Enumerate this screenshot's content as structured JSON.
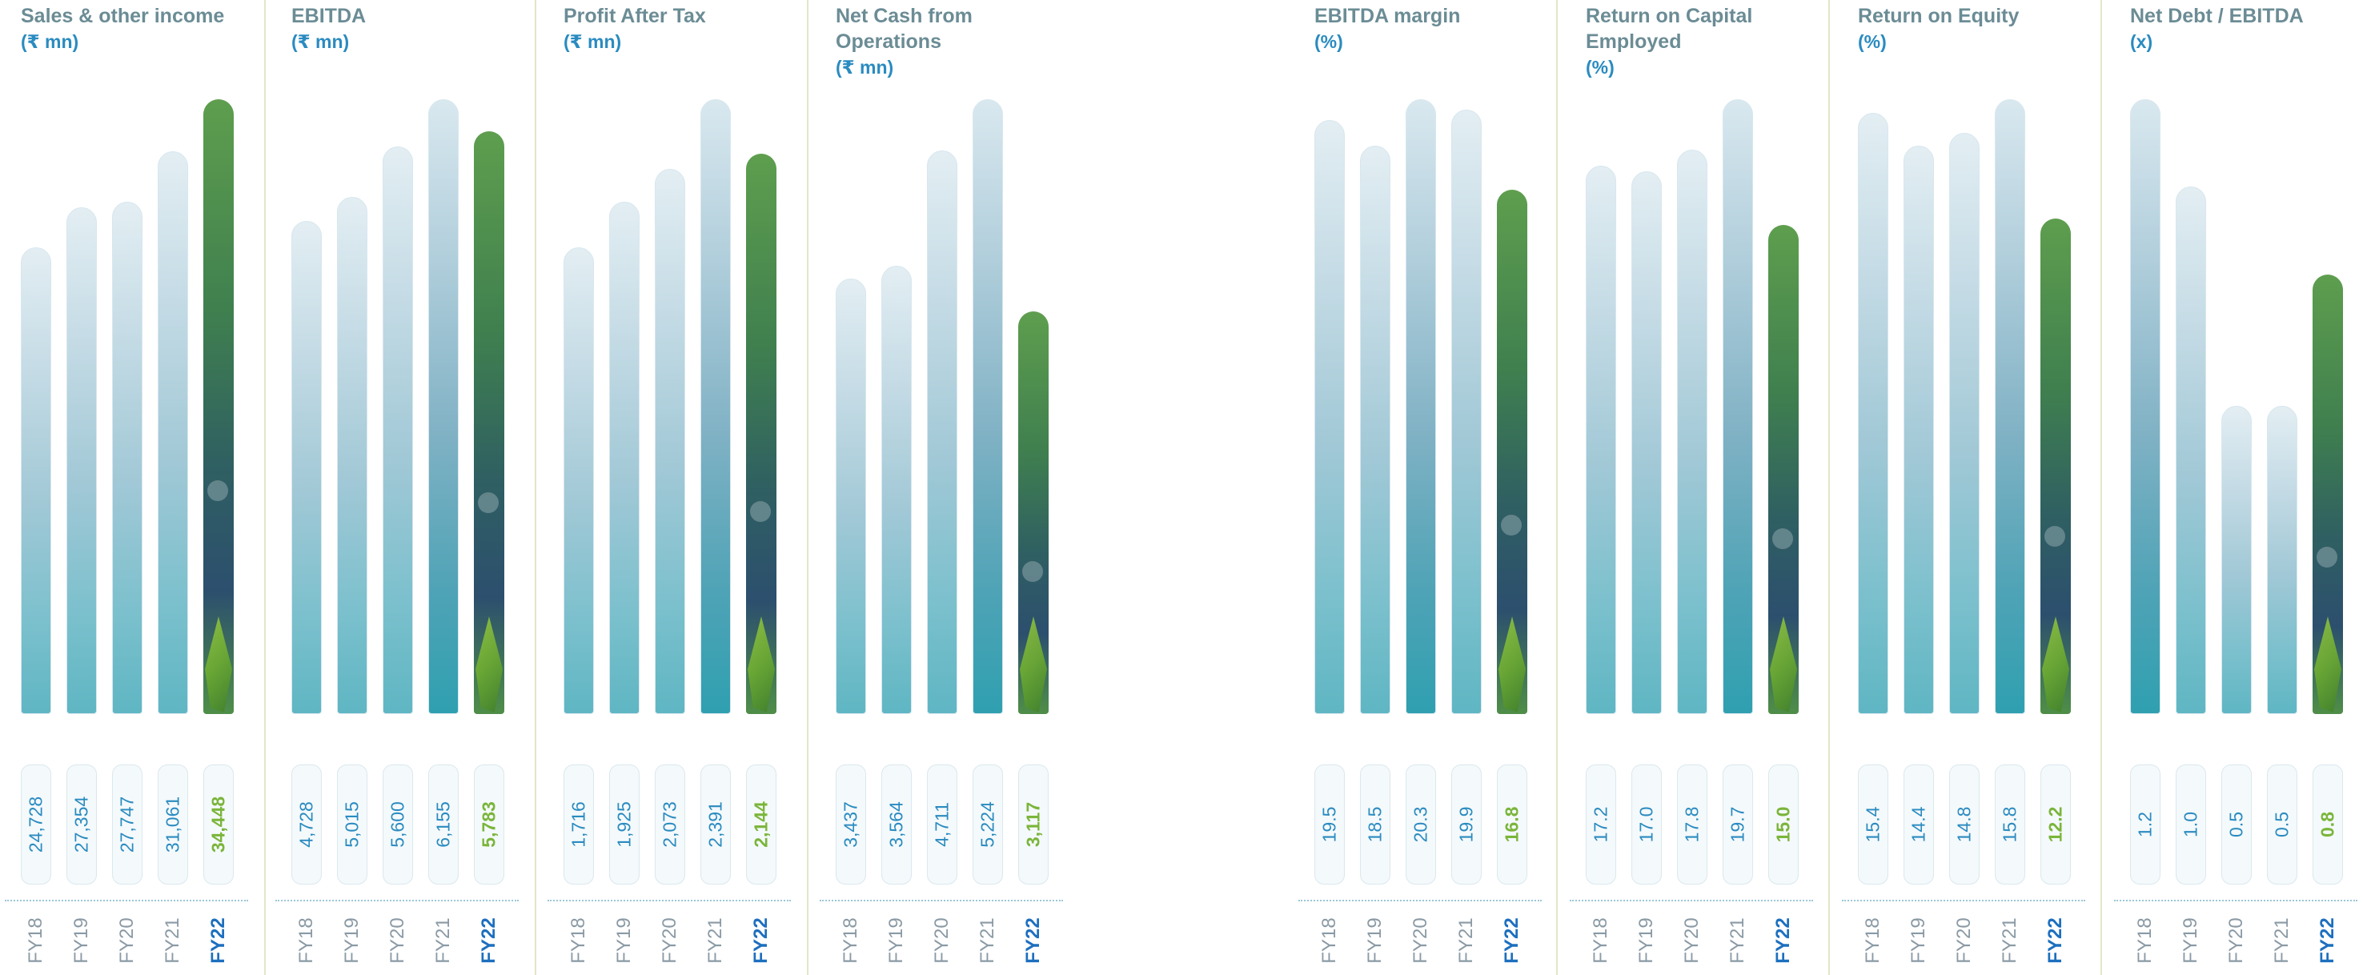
{
  "chart_data": [
    {
      "type": "bar",
      "title": "Sales & other income",
      "unit": "(₹ mn)",
      "categories": [
        "FY18",
        "FY19",
        "FY20",
        "FY21",
        "FY22"
      ],
      "value_labels": [
        "24,728",
        "27,354",
        "27,747",
        "31,061",
        "34,448"
      ],
      "values": [
        24728,
        27354,
        27747,
        31061,
        34448
      ],
      "highlight": "FY22"
    },
    {
      "type": "bar",
      "title": "EBITDA",
      "unit": "(₹ mn)",
      "categories": [
        "FY18",
        "FY19",
        "FY20",
        "FY21",
        "FY22"
      ],
      "value_labels": [
        "4,728",
        "5,015",
        "5,600",
        "6,155",
        "5,783"
      ],
      "values": [
        4728,
        5015,
        5600,
        6155,
        5783
      ],
      "highlight": "FY22"
    },
    {
      "type": "bar",
      "title": "Profit After Tax",
      "unit": "(₹ mn)",
      "categories": [
        "FY18",
        "FY19",
        "FY20",
        "FY21",
        "FY22"
      ],
      "value_labels": [
        "1,716",
        "1,925",
        "2,073",
        "2,391",
        "2,144"
      ],
      "values": [
        1716,
        1925,
        2073,
        2391,
        2144
      ],
      "highlight": "FY22"
    },
    {
      "type": "bar",
      "title": "Net Cash from Operations",
      "unit": "(₹ mn)",
      "categories": [
        "FY18",
        "FY19",
        "FY20",
        "FY21",
        "FY22"
      ],
      "value_labels": [
        "3,437",
        "3,564",
        "4,711",
        "5,224",
        "3,117"
      ],
      "values": [
        3437,
        3564,
        4711,
        5224,
        3117
      ],
      "highlight": "FY22"
    },
    {
      "type": "bar",
      "title": "EBITDA margin",
      "unit": "(%)",
      "categories": [
        "FY18",
        "FY19",
        "FY20",
        "FY21",
        "FY22"
      ],
      "value_labels": [
        "19.5",
        "18.5",
        "20.3",
        "19.9",
        "16.8"
      ],
      "values": [
        19.5,
        18.5,
        20.3,
        19.9,
        16.8
      ],
      "highlight": "FY22"
    },
    {
      "type": "bar",
      "title": "Return on Capital Employed",
      "unit": "(%)",
      "categories": [
        "FY18",
        "FY19",
        "FY20",
        "FY21",
        "FY22"
      ],
      "value_labels": [
        "17.2",
        "17.0",
        "17.8",
        "19.7",
        "15.0"
      ],
      "values": [
        17.2,
        17.0,
        17.8,
        19.7,
        15.0
      ],
      "highlight": "FY22"
    },
    {
      "type": "bar",
      "title": "Return on Equity",
      "unit": "(%)",
      "categories": [
        "FY18",
        "FY19",
        "FY20",
        "FY21",
        "FY22"
      ],
      "value_labels": [
        "15.4",
        "14.4",
        "14.8",
        "15.8",
        "12.2"
      ],
      "values": [
        15.4,
        14.4,
        14.8,
        15.8,
        12.2
      ],
      "highlight": "FY22"
    },
    {
      "type": "bar",
      "title": "Net Debt / EBITDA",
      "unit": "(x)",
      "categories": [
        "FY18",
        "FY19",
        "FY20",
        "FY21",
        "FY22"
      ],
      "value_labels": [
        "1.2",
        "1.0",
        "0.5",
        "0.5",
        "0.8"
      ],
      "values": [
        1.2,
        1.0,
        0.5,
        0.5,
        0.8
      ],
      "highlight": "FY22"
    }
  ]
}
